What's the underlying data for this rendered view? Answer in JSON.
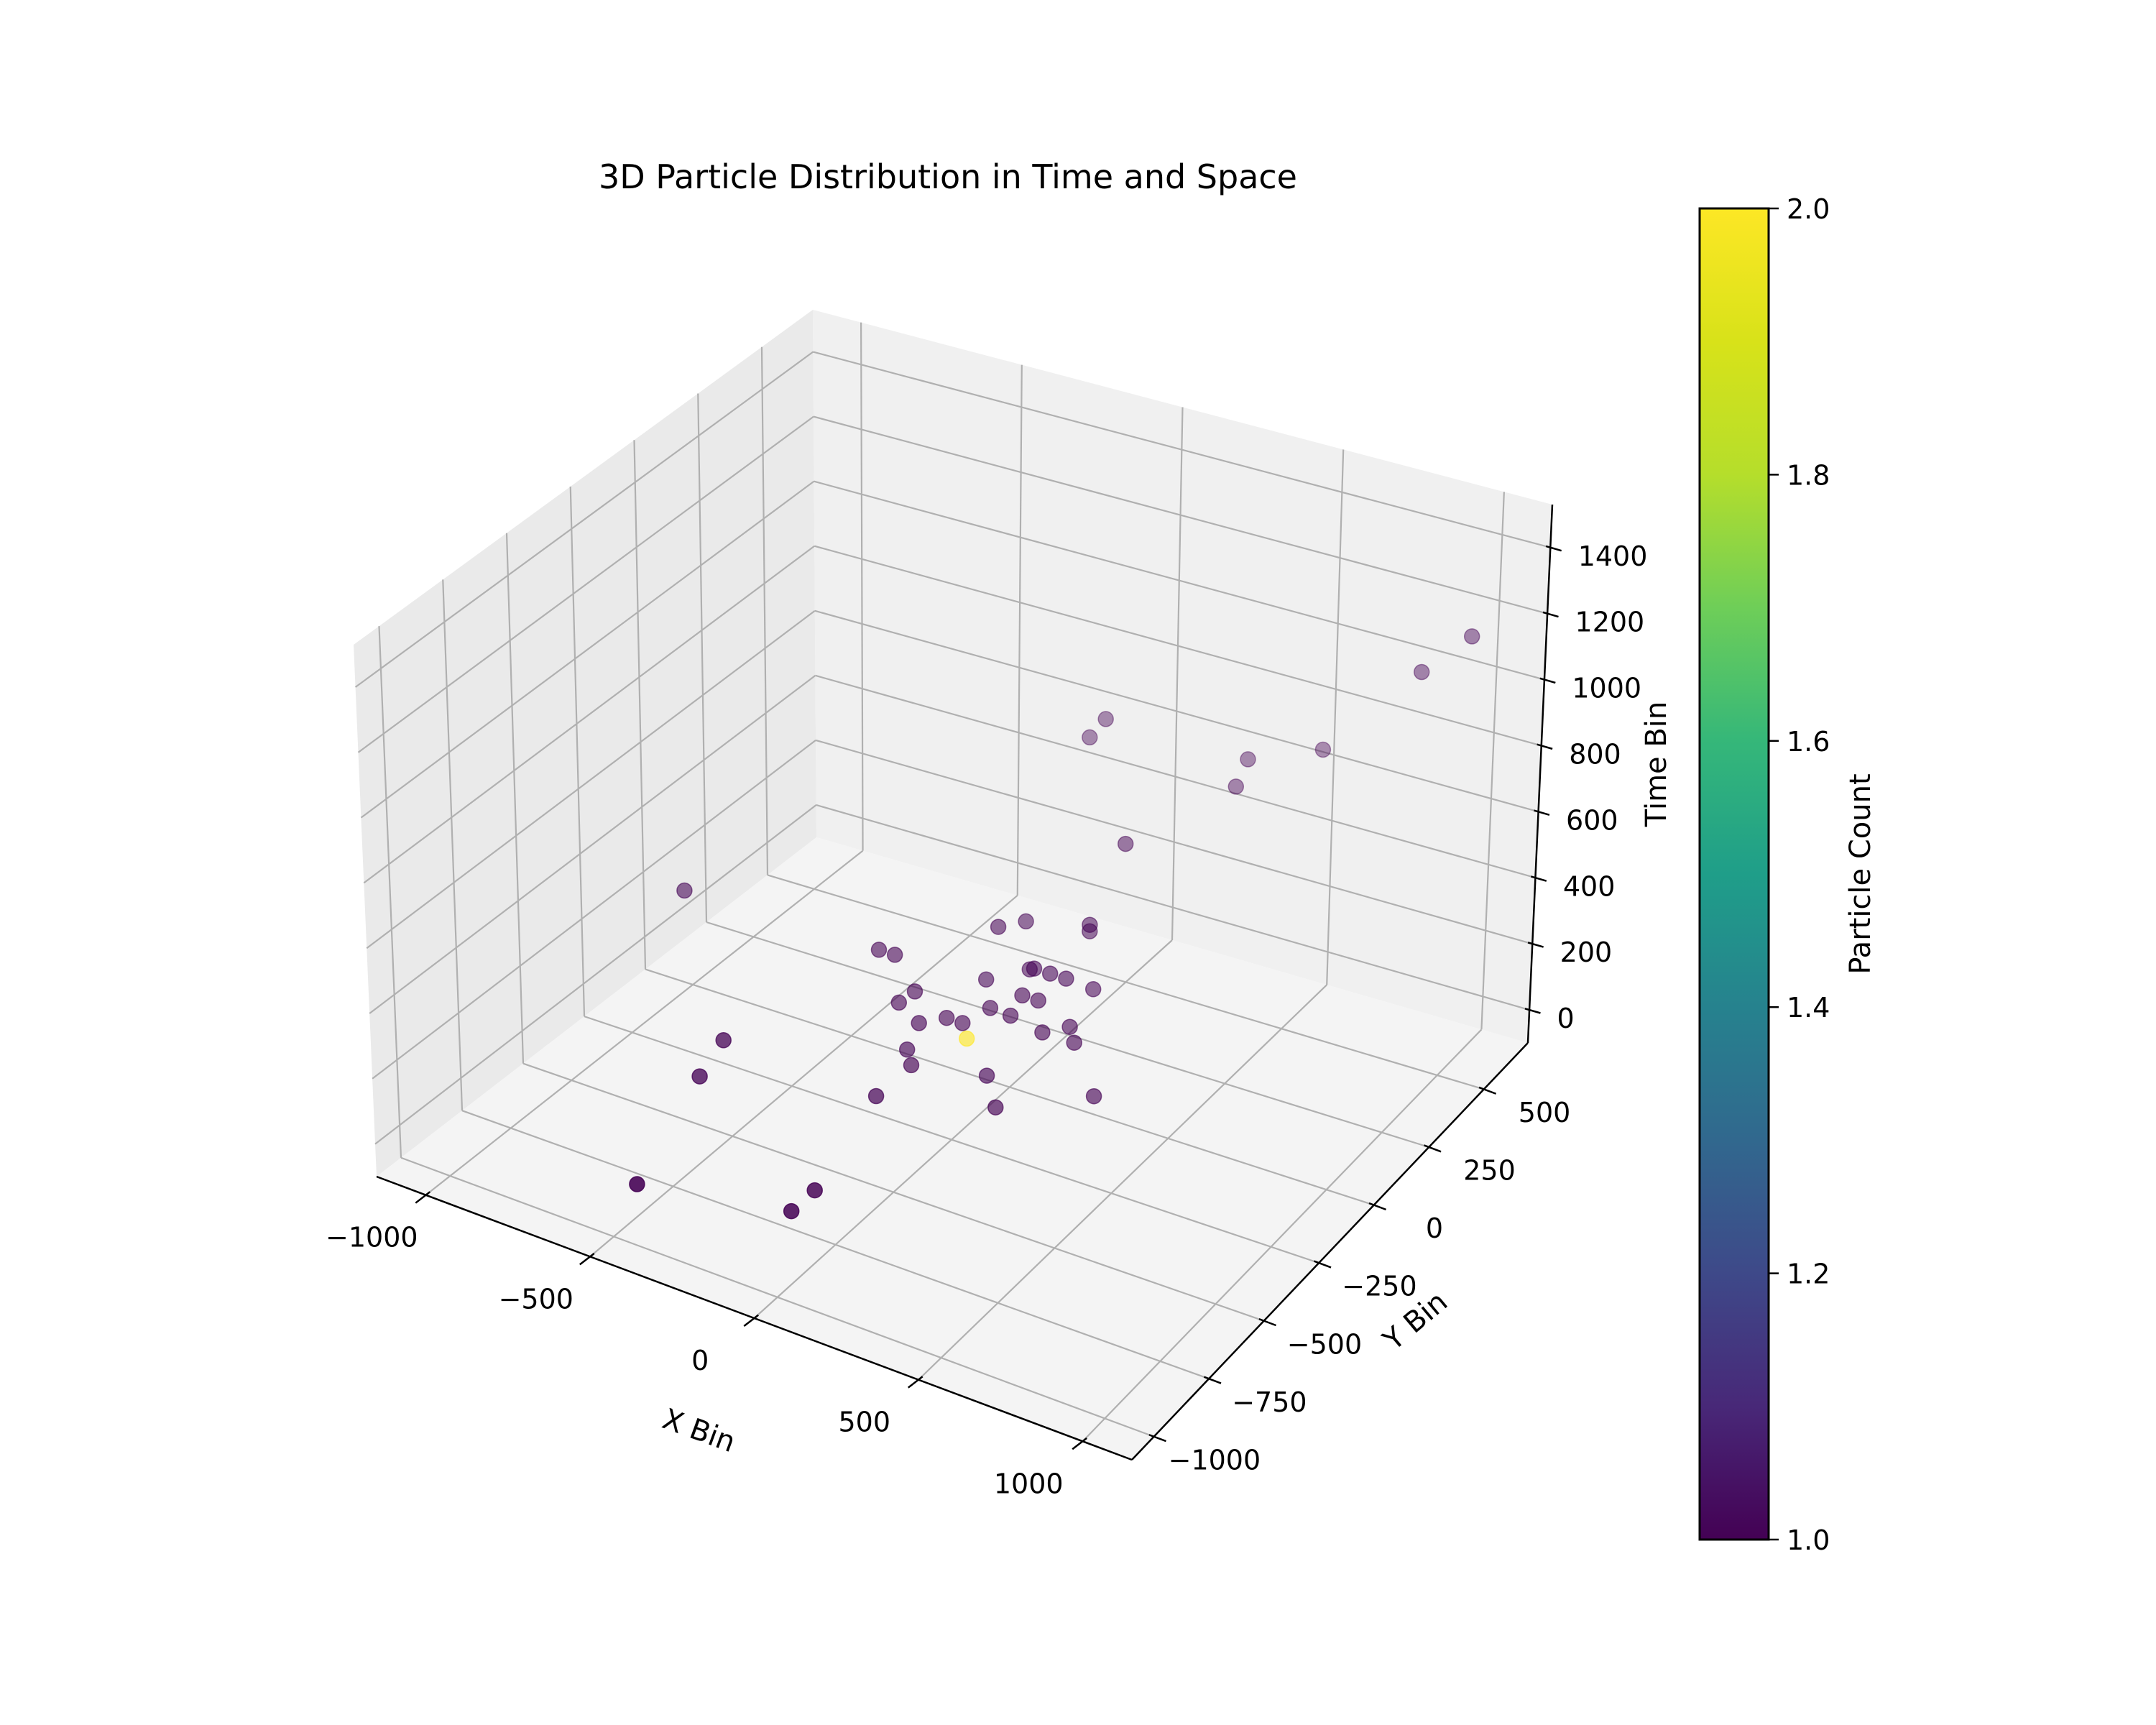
{
  "chart_data": {
    "type": "scatter",
    "projection": "3d",
    "title": "3D Particle Distribution in Time and Space",
    "xlabel": "X Bin",
    "ylabel": "Y Bin",
    "zlabel": "Time Bin",
    "colorbar_label": "Particle Count",
    "colormap": "viridis",
    "grid": true,
    "xlim": [
      -1150,
      1150
    ],
    "ylim": [
      -1100,
      700
    ],
    "zlim": [
      -100,
      1530
    ],
    "xticks": [
      -1000,
      -500,
      0,
      500,
      1000
    ],
    "xtick_labels": [
      "−1000",
      "−500",
      "0",
      "500",
      "1000"
    ],
    "yticks": [
      -1000,
      -750,
      -500,
      -250,
      0,
      250,
      500
    ],
    "ytick_labels": [
      "−1000",
      "−750",
      "−500",
      "−250",
      "0",
      "250",
      "500"
    ],
    "zticks": [
      0,
      200,
      400,
      600,
      800,
      1000,
      1200,
      1400
    ],
    "ztick_labels": [
      "0",
      "200",
      "400",
      "600",
      "800",
      "1000",
      "1200",
      "1400"
    ],
    "colorbar_range": [
      1.0,
      2.0
    ],
    "colorbar_ticks": [
      1.0,
      1.2,
      1.4,
      1.6,
      1.8,
      2.0
    ],
    "colorbar_tick_labels": [
      "1.0",
      "1.2",
      "1.4",
      "1.6",
      "1.8",
      "2.0"
    ],
    "points": [
      {
        "x": -1100,
        "y": 100,
        "z": 100,
        "count": 1
      },
      {
        "x": 1050,
        "y": 500,
        "z": 1250,
        "count": 1
      },
      {
        "x": 900,
        "y": 500,
        "z": 1100,
        "count": 1
      },
      {
        "x": 500,
        "y": 650,
        "z": 650,
        "count": 1
      },
      {
        "x": 300,
        "y": 600,
        "z": 600,
        "count": 1
      },
      {
        "x": 300,
        "y": 550,
        "z": 550,
        "count": 1
      },
      {
        "x": -150,
        "y": 600,
        "z": 600,
        "count": 1
      },
      {
        "x": -200,
        "y": 600,
        "z": 530,
        "count": 1
      },
      {
        "x": 100,
        "y": 350,
        "z": 450,
        "count": 1
      },
      {
        "x": 100,
        "y": 200,
        "z": 300,
        "count": 1
      },
      {
        "x": 100,
        "y": 200,
        "z": 280,
        "count": 1
      },
      {
        "x": 100,
        "y": 0,
        "z": 100,
        "count": 1
      },
      {
        "x": 300,
        "y": -50,
        "z": 0,
        "count": 1
      },
      {
        "x": 150,
        "y": 150,
        "z": 150,
        "count": 1
      },
      {
        "x": 150,
        "y": 50,
        "z": 100,
        "count": 1
      },
      {
        "x": 0,
        "y": 100,
        "z": 200,
        "count": 1
      },
      {
        "x": -100,
        "y": 200,
        "z": 250,
        "count": 1
      },
      {
        "x": -150,
        "y": 150,
        "z": 250,
        "count": 1
      },
      {
        "x": 50,
        "y": 100,
        "z": 200,
        "count": 1
      },
      {
        "x": 0,
        "y": 50,
        "z": 150,
        "count": 1
      },
      {
        "x": -50,
        "y": 150,
        "z": 150,
        "count": 1
      },
      {
        "x": 0,
        "y": 0,
        "z": 120,
        "count": 1
      },
      {
        "x": 50,
        "y": 50,
        "z": 150,
        "count": 1
      },
      {
        "x": 100,
        "y": 100,
        "z": 200,
        "count": 1
      },
      {
        "x": -150,
        "y": 100,
        "z": 120,
        "count": 1
      },
      {
        "x": -100,
        "y": 50,
        "z": 80,
        "count": 1
      },
      {
        "x": -150,
        "y": 0,
        "z": 50,
        "count": 1
      },
      {
        "x": -200,
        "y": 0,
        "z": 50,
        "count": 1
      },
      {
        "x": -250,
        "y": -50,
        "z": 50,
        "count": 1
      },
      {
        "x": -200,
        "y": -150,
        "z": 0,
        "count": 1
      },
      {
        "x": -250,
        "y": -100,
        "z": 0,
        "count": 1
      },
      {
        "x": -300,
        "y": 0,
        "z": 100,
        "count": 1
      },
      {
        "x": -400,
        "y": 50,
        "z": 150,
        "count": 1
      },
      {
        "x": -450,
        "y": 50,
        "z": 150,
        "count": 1
      },
      {
        "x": -350,
        "y": 0,
        "z": 50,
        "count": 1
      },
      {
        "x": -100,
        "y": -50,
        "z": 50,
        "count": 2
      },
      {
        "x": 0,
        "y": -100,
        "z": 0,
        "count": 1
      },
      {
        "x": 200,
        "y": 0,
        "z": 100,
        "count": 1
      },
      {
        "x": 100,
        "y": -200,
        "z": 0,
        "count": 1
      },
      {
        "x": -200,
        "y": -300,
        "z": 0,
        "count": 1
      },
      {
        "x": -600,
        "y": -400,
        "z": 100,
        "count": 1
      },
      {
        "x": -600,
        "y": -500,
        "z": 50,
        "count": 1
      },
      {
        "x": -500,
        "y": -900,
        "z": 0,
        "count": 1
      },
      {
        "x": -100,
        "y": -800,
        "z": 0,
        "count": 1
      },
      {
        "x": -100,
        "y": -700,
        "z": 0,
        "count": 1
      }
    ]
  }
}
